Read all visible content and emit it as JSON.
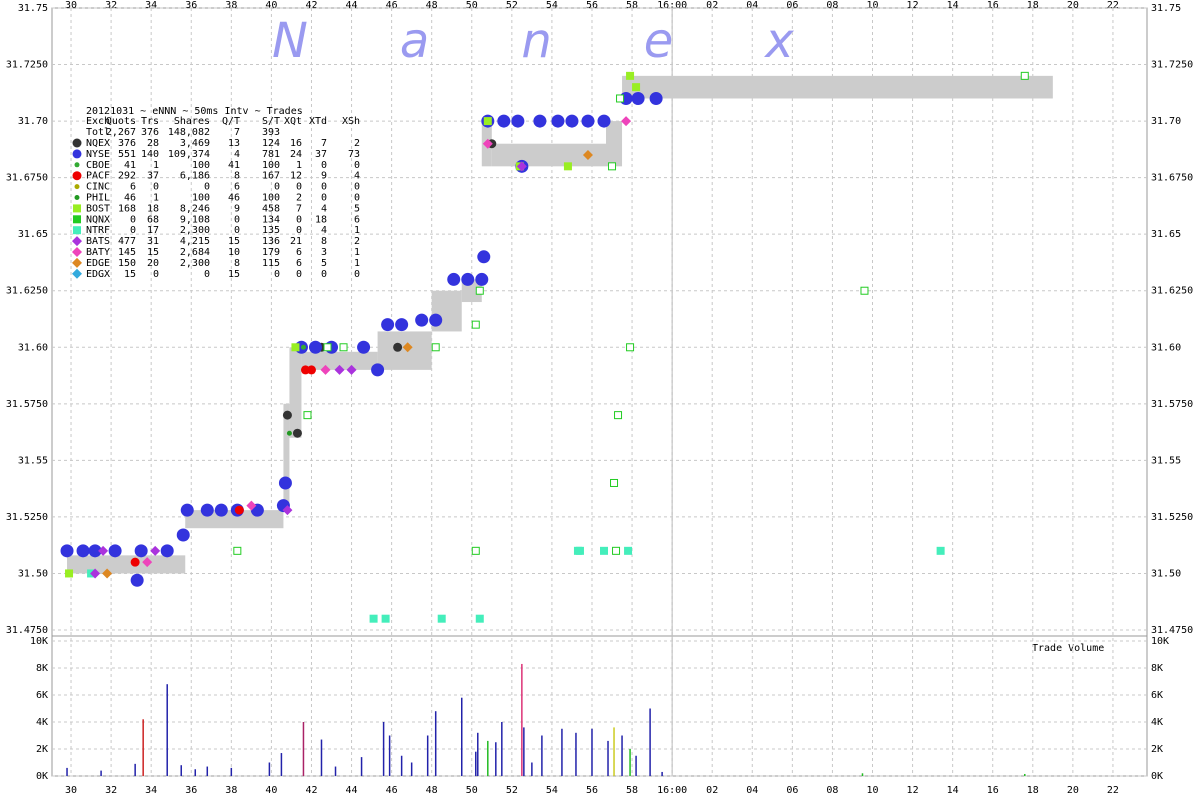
{
  "chart_data": [
    {
      "type": "scatter",
      "watermark": "Nanex",
      "xlim": [
        29.05,
        83.7
      ],
      "xticks": [
        30,
        32,
        34,
        36,
        38,
        40,
        42,
        44,
        46,
        48,
        50,
        52,
        54,
        56,
        58,
        {
          "value": 60,
          "label": "16:00"
        },
        {
          "value": 62,
          "label": "02"
        },
        {
          "value": 64,
          "label": "04"
        },
        {
          "value": 66,
          "label": "06"
        },
        {
          "value": 68,
          "label": "08"
        },
        {
          "value": 70,
          "label": "10"
        },
        {
          "value": 72,
          "label": "12"
        },
        {
          "value": 74,
          "label": "14"
        },
        {
          "value": 76,
          "label": "16"
        },
        {
          "value": 78,
          "label": "18"
        },
        {
          "value": 80,
          "label": "20"
        },
        {
          "value": 82,
          "label": "22"
        }
      ],
      "ylim": [
        31.475,
        31.75
      ],
      "yticks": [
        31.75,
        {
          "value": 31.725,
          "label": "31.7250"
        },
        {
          "value": 31.7,
          "label": "31.70"
        },
        {
          "value": 31.675,
          "label": "31.6750"
        },
        31.65,
        {
          "value": 31.625,
          "label": "31.6250"
        },
        {
          "value": 31.6,
          "label": "31.60"
        },
        {
          "value": 31.575,
          "label": "31.5750"
        },
        31.55,
        {
          "value": 31.525,
          "label": "31.5250"
        },
        {
          "value": 31.5,
          "label": "31.50"
        },
        {
          "value": 31.475,
          "label": "31.4750"
        }
      ],
      "grid": true,
      "close_line": 60,
      "table": {
        "title": "20121031 ~ eNNN ~ 50ms Intv ~ Trades",
        "columns": [
          "Exch",
          "Quots",
          "Trs",
          "Shares",
          "Q/T",
          "S/T",
          "XQt",
          "XTd",
          "XSh"
        ],
        "total": [
          "Totl",
          "2,267",
          "376",
          "148,082",
          "7",
          "393",
          "",
          "",
          ""
        ]
      },
      "nbbo": {
        "x0": [
          29.8,
          35.7,
          40.6,
          40.9,
          41.5,
          45.3,
          48.0,
          49.5,
          50.5,
          51.0,
          56.7,
          57.5
        ],
        "x1": [
          35.7,
          40.6,
          40.9,
          41.5,
          45.3,
          48.0,
          49.5,
          50.5,
          51.0,
          56.7,
          57.5,
          79.0
        ],
        "low": [
          31.5,
          31.52,
          31.528,
          31.56,
          31.59,
          31.59,
          31.607,
          31.62,
          31.68,
          31.68,
          31.68,
          31.71
        ],
        "high": [
          31.508,
          31.528,
          31.575,
          31.6,
          31.598,
          31.607,
          31.625,
          31.63,
          31.7,
          31.69,
          31.7,
          31.72
        ]
      },
      "series": [
        {
          "name": "NQEX",
          "color": "#333333",
          "marker": "circle",
          "stats": [
            "376",
            "28",
            "3,469",
            "13",
            "124",
            "16",
            "7",
            "2"
          ],
          "x": [
            40.8,
            42.5,
            46.3,
            51.0,
            41.3
          ],
          "values": [
            31.57,
            31.6,
            31.6,
            31.69,
            31.562
          ]
        },
        {
          "name": "NYSE",
          "color": "#3333dd",
          "marker": "bigcircle",
          "stats": [
            "551",
            "140",
            "109,374",
            "4",
            "781",
            "24",
            "37",
            "73"
          ],
          "x": [
            29.8,
            30.6,
            31.2,
            32.2,
            33.3,
            33.5,
            34.8,
            35.6,
            35.8,
            36.8,
            37.5,
            38.3,
            39.3,
            40.6,
            40.7,
            41.5,
            42.2,
            43.0,
            44.6,
            45.3,
            45.8,
            46.5,
            47.5,
            48.2,
            49.1,
            49.8,
            50.5,
            50.6,
            50.8,
            51.6,
            52.3,
            53.4,
            54.3,
            55.0,
            55.8,
            56.6,
            52.5,
            57.7,
            58.3,
            59.2
          ],
          "values": [
            31.51,
            31.51,
            31.51,
            31.51,
            31.497,
            31.51,
            31.51,
            31.517,
            31.528,
            31.528,
            31.528,
            31.528,
            31.528,
            31.53,
            31.54,
            31.6,
            31.6,
            31.6,
            31.6,
            31.59,
            31.61,
            31.61,
            31.612,
            31.612,
            31.63,
            31.63,
            31.63,
            31.64,
            31.7,
            31.7,
            31.7,
            31.7,
            31.7,
            31.7,
            31.7,
            31.7,
            31.68,
            31.71,
            31.71,
            31.71
          ]
        },
        {
          "name": "CBOE",
          "color": "#33aa33",
          "marker": "dot",
          "stats": [
            "41",
            "1",
            "100",
            "41",
            "100",
            "1",
            "0",
            "0"
          ],
          "x": [
            41.6
          ],
          "values": [
            31.6
          ]
        },
        {
          "name": "PACF",
          "color": "#ee0000",
          "marker": "circle",
          "stats": [
            "292",
            "37",
            "6,186",
            "8",
            "167",
            "12",
            "9",
            "4"
          ],
          "x": [
            41.7,
            38.4,
            33.2,
            42.0
          ],
          "values": [
            31.59,
            31.528,
            31.505,
            31.59
          ]
        },
        {
          "name": "CINC",
          "color": "#aaaa00",
          "marker": "dot",
          "stats": [
            "6",
            "0",
            "0",
            "6",
            "0",
            "0",
            "0",
            "0"
          ],
          "x": [],
          "values": []
        },
        {
          "name": "PHIL",
          "color": "#229922",
          "marker": "dot",
          "stats": [
            "46",
            "1",
            "100",
            "46",
            "100",
            "2",
            "0",
            "0"
          ],
          "x": [
            40.9
          ],
          "values": [
            31.562
          ]
        },
        {
          "name": "BOST",
          "color": "#99ee22",
          "marker": "square",
          "stats": [
            "168",
            "18",
            "8,246",
            "9",
            "458",
            "7",
            "4",
            "5"
          ],
          "x": [
            29.9,
            41.2,
            50.8,
            54.8,
            57.9,
            58.2,
            52.4
          ],
          "values": [
            31.5,
            31.6,
            31.7,
            31.68,
            31.72,
            31.715,
            31.68
          ]
        },
        {
          "name": "NQNX",
          "color": "#22cc22",
          "marker": "opensquare",
          "stats": [
            "0",
            "68",
            "9,108",
            "0",
            "134",
            "0",
            "18",
            "6"
          ],
          "x": [
            38.3,
            50.2,
            41.8,
            48.2,
            50.2,
            50.4,
            57.9,
            57.3,
            57.1,
            57.2,
            69.6,
            77.6,
            57.0,
            57.4,
            42.8,
            43.6
          ],
          "values": [
            31.51,
            31.51,
            31.57,
            31.6,
            31.61,
            31.625,
            31.6,
            31.57,
            31.54,
            31.51,
            31.625,
            31.72,
            31.68,
            31.71,
            31.6,
            31.6
          ]
        },
        {
          "name": "NTRF",
          "color": "#44eebb",
          "marker": "square",
          "stats": [
            "0",
            "17",
            "2,300",
            "0",
            "135",
            "0",
            "4",
            "1"
          ],
          "x": [
            45.1,
            45.7,
            48.5,
            50.4,
            55.3,
            55.4,
            56.6,
            57.8,
            73.4,
            31.0
          ],
          "values": [
            31.48,
            31.48,
            31.48,
            31.48,
            31.51,
            31.51,
            31.51,
            31.51,
            31.51,
            31.5
          ]
        },
        {
          "name": "BATS",
          "color": "#aa33dd",
          "marker": "diamond",
          "stats": [
            "477",
            "31",
            "4,215",
            "15",
            "136",
            "21",
            "8",
            "2"
          ],
          "x": [
            31.6,
            34.2,
            40.8,
            44.0,
            52.5,
            31.2,
            43.4
          ],
          "values": [
            31.51,
            31.51,
            31.528,
            31.59,
            31.68,
            31.5,
            31.59
          ]
        },
        {
          "name": "BATY",
          "color": "#ee44bb",
          "marker": "diamond",
          "stats": [
            "145",
            "15",
            "2,684",
            "10",
            "179",
            "6",
            "3",
            "1"
          ],
          "x": [
            33.8,
            39.0,
            50.8,
            42.7,
            57.7
          ],
          "values": [
            31.505,
            31.53,
            31.69,
            31.59,
            31.7
          ]
        },
        {
          "name": "EDGE",
          "color": "#dd8822",
          "marker": "diamond",
          "stats": [
            "150",
            "20",
            "2,300",
            "8",
            "115",
            "6",
            "5",
            "1"
          ],
          "x": [
            31.8,
            46.8,
            55.8
          ],
          "values": [
            31.5,
            31.6,
            31.685
          ]
        },
        {
          "name": "EDGX",
          "color": "#33aadd",
          "marker": "diamond",
          "stats": [
            "15",
            "0",
            "0",
            "15",
            "0",
            "0",
            "0",
            "0"
          ],
          "x": [],
          "values": []
        }
      ]
    },
    {
      "type": "bar",
      "title": "Trade Volume",
      "ylim": [
        0,
        10000
      ],
      "yticks": [
        {
          "value": 0,
          "label": "0K"
        },
        {
          "value": 2000,
          "label": "2K"
        },
        {
          "value": 4000,
          "label": "4K"
        },
        {
          "value": 6000,
          "label": "6K"
        },
        {
          "value": 8000,
          "label": "8K"
        },
        {
          "value": 10000,
          "label": "10K"
        }
      ],
      "x": [
        29.8,
        31.5,
        33.2,
        33.6,
        34.8,
        36.2,
        38,
        39.9,
        41.6,
        42.5,
        44.5,
        45.6,
        45.9,
        46.5,
        47.8,
        48.2,
        49.5,
        50.3,
        50.8,
        51.2,
        51.5,
        52.5,
        52.6,
        53.5,
        54.5,
        55.2,
        56.0,
        56.8,
        57.1,
        57.5,
        57.9,
        58.2,
        58.9,
        50.2,
        47.0,
        43.2,
        36.8,
        59.5,
        69.5,
        35.5,
        40.5,
        53.0,
        77.6
      ],
      "values": [
        600,
        400,
        900,
        4200,
        6800,
        500,
        600,
        1000,
        4000,
        2700,
        1400,
        4000,
        3000,
        1500,
        3000,
        4800,
        5800,
        3200,
        2600,
        2500,
        4000,
        8300,
        3600,
        3000,
        3500,
        3200,
        3500,
        2600,
        3600,
        3000,
        2000,
        1500,
        5000,
        1800,
        1000,
        700,
        700,
        300,
        200,
        800,
        1700,
        1000,
        150
      ],
      "colors": [
        "#2222aa",
        "#2222aa",
        "#2222aa",
        "#cc2222",
        "#2222aa",
        "#2222aa",
        "#2222aa",
        "#2222aa",
        "#aa2266",
        "#2222aa",
        "#2222aa",
        "#2222aa",
        "#2222aa",
        "#2222aa",
        "#2222aa",
        "#2222aa",
        "#2222aa",
        "#2222aa",
        "#22bb22",
        "#2222aa",
        "#2222aa",
        "#dd3377",
        "#2222aa",
        "#2222aa",
        "#2222aa",
        "#2222aa",
        "#2222aa",
        "#2222aa",
        "#cccc22",
        "#2222aa",
        "#22bb22",
        "#2222aa",
        "#2222aa",
        "#2222aa",
        "#2222aa",
        "#2222aa",
        "#2222aa",
        "#2222aa",
        "#22bb22",
        "#2222aa",
        "#2222aa",
        "#2222aa",
        "#22bb22"
      ]
    }
  ]
}
